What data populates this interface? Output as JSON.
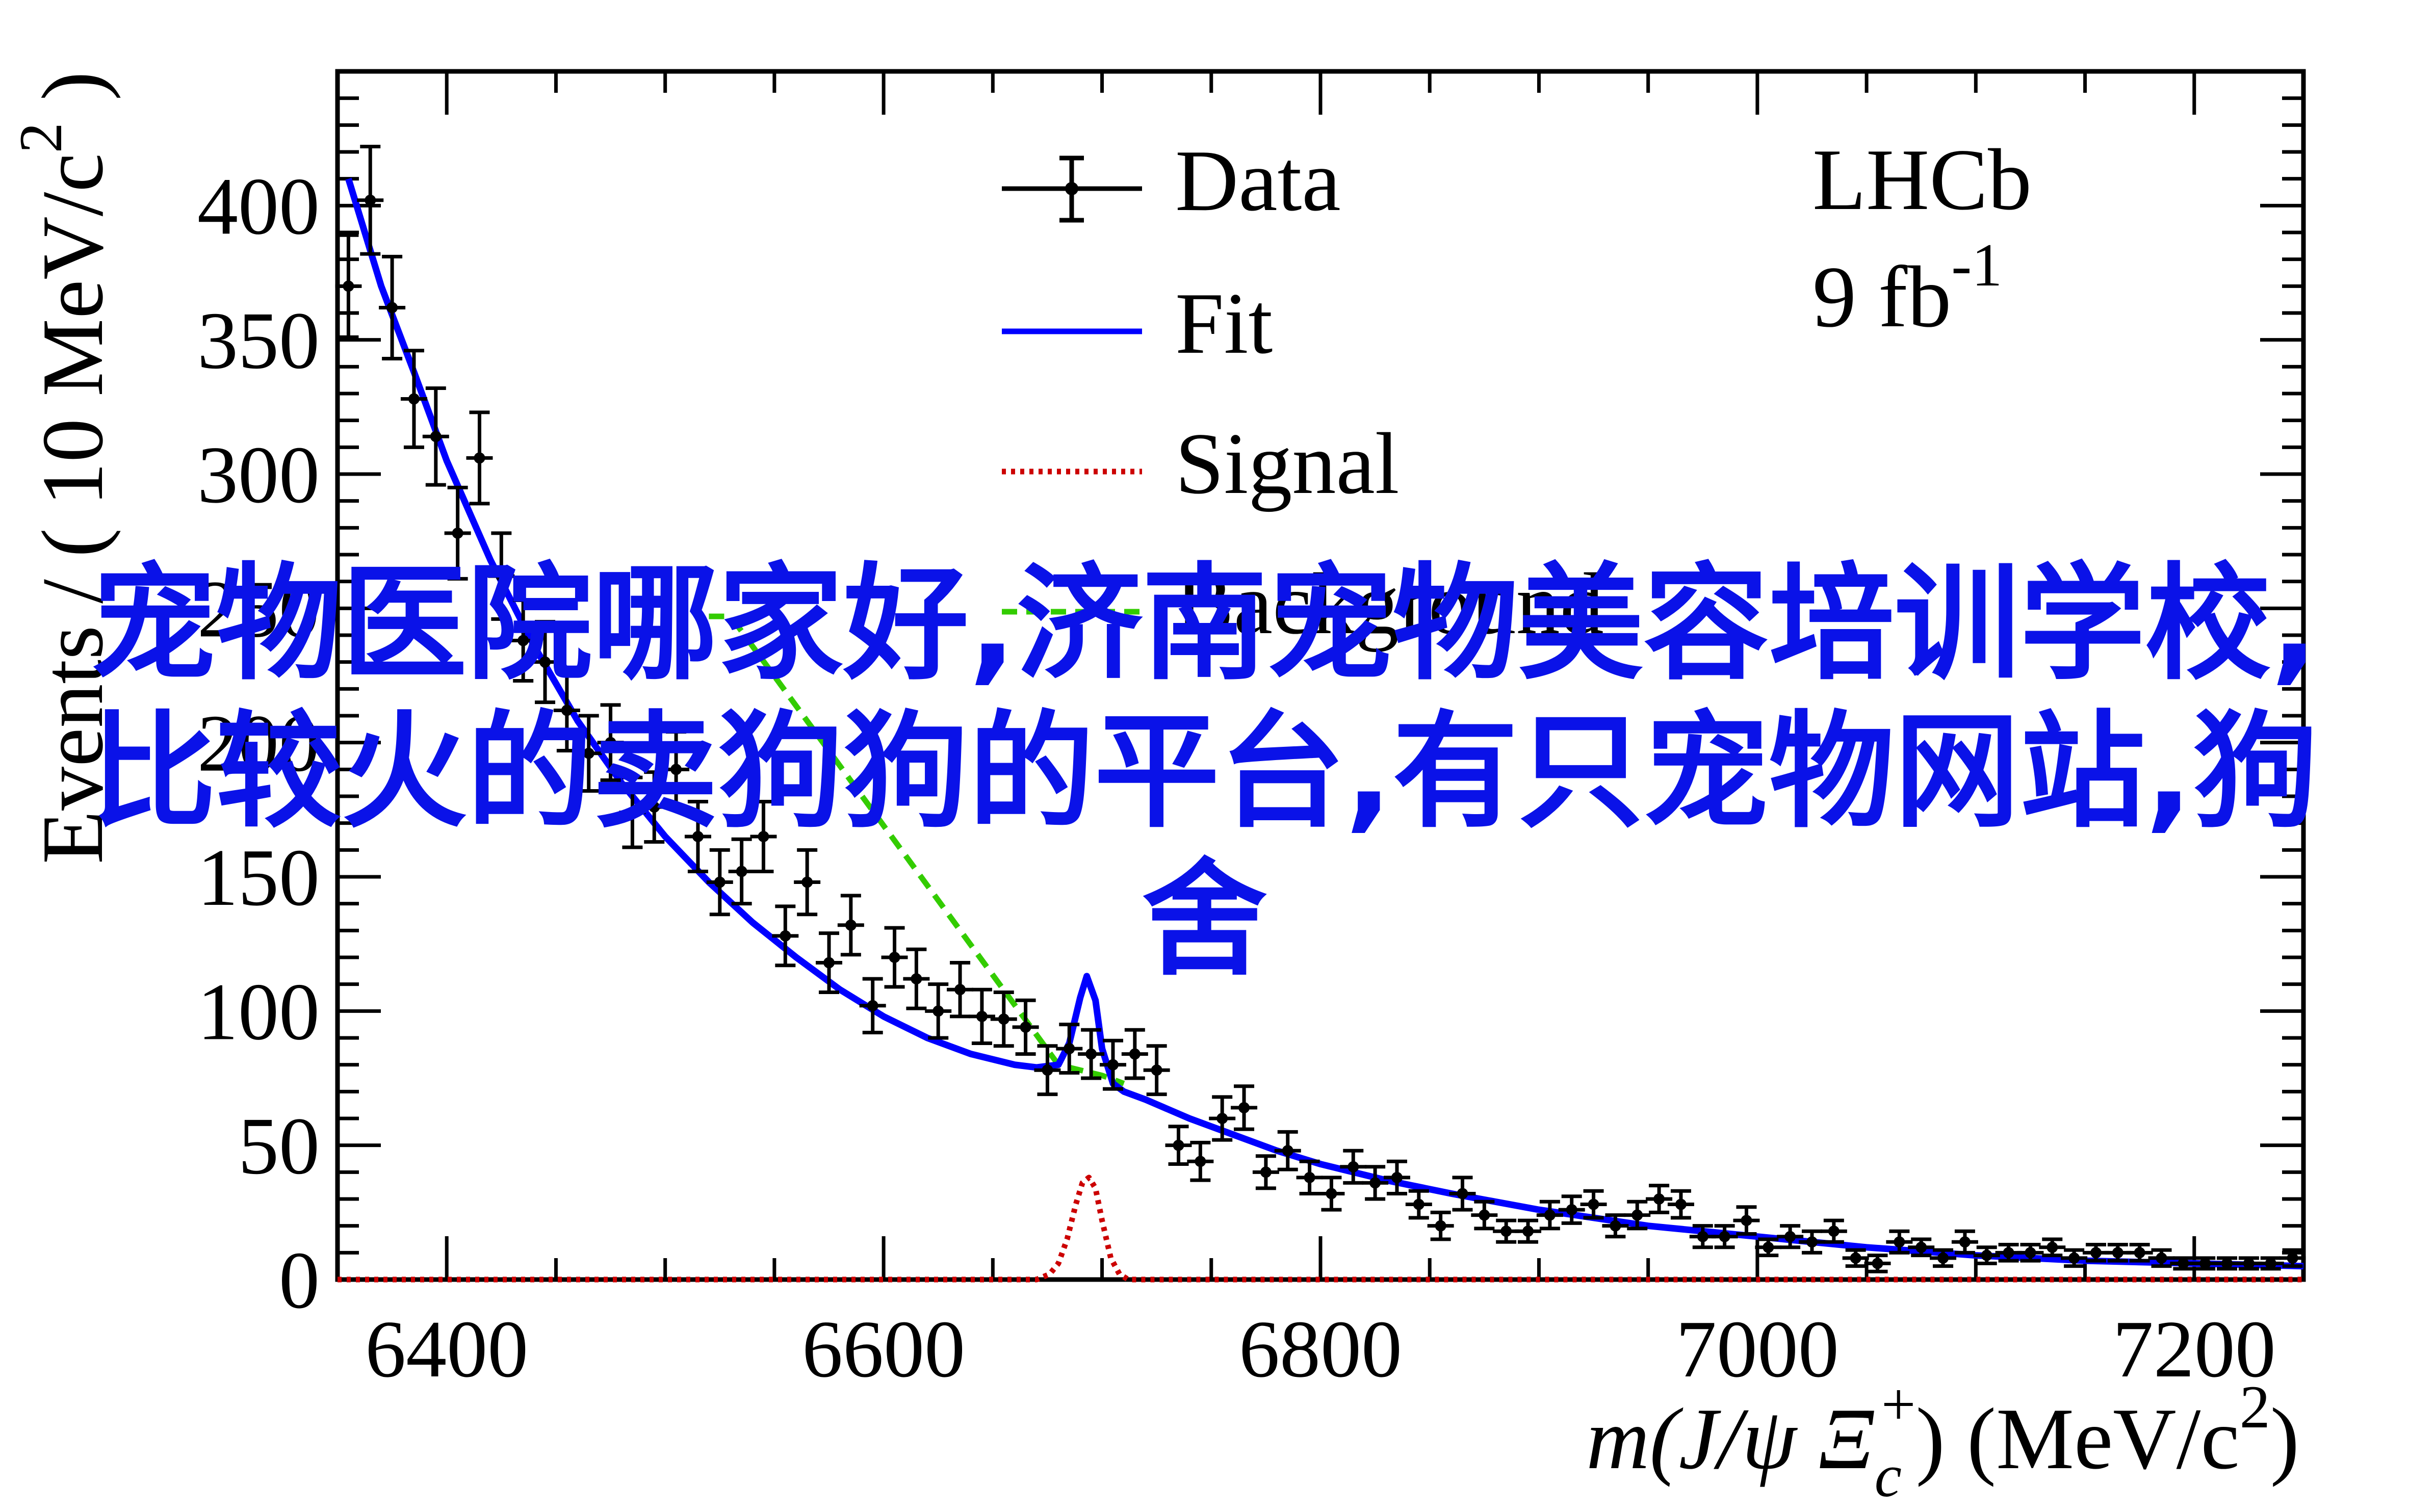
{
  "chart_data": {
    "type": "scatter",
    "title": "",
    "experiment_label": "LHCb",
    "luminosity_label": "9 fb",
    "luminosity_exponent": "-1",
    "xlabel_main": "m(J/ψ Ξ",
    "xlabel_sub": "c",
    "xlabel_sup": "+",
    "xlabel_unit": ") (MeV/c",
    "xlabel_unit_sup": "2",
    "xlabel_end": ")",
    "ylabel": "Events / ( 10 MeV/c",
    "ylabel_sup": "2",
    "ylabel_end": " )",
    "xlim": [
      6350,
      7250
    ],
    "ylim": [
      0,
      450
    ],
    "x_ticks": [
      6400,
      6600,
      6800,
      7000,
      7200
    ],
    "y_ticks": [
      0,
      50,
      100,
      150,
      200,
      250,
      300,
      350,
      400
    ],
    "legend": {
      "placement": "top-center",
      "entries": [
        {
          "label": "Data",
          "style": "marker-errorbar",
          "color": "#000000"
        },
        {
          "label": "Fit",
          "style": "solid",
          "color": "#0000ff"
        },
        {
          "label": "Signal",
          "style": "dotted",
          "color": "#cc0000"
        },
        {
          "label": "Background",
          "style": "dashed",
          "color": "#33cc00"
        }
      ]
    },
    "series": [
      {
        "name": "Data",
        "x": [
          6355,
          6365,
          6375,
          6385,
          6395,
          6405,
          6415,
          6425,
          6435,
          6445,
          6455,
          6465,
          6475,
          6485,
          6495,
          6505,
          6515,
          6525,
          6535,
          6545,
          6555,
          6565,
          6575,
          6585,
          6595,
          6605,
          6615,
          6625,
          6635,
          6645,
          6655,
          6665,
          6675,
          6685,
          6695,
          6705,
          6715,
          6725,
          6735,
          6745,
          6755,
          6765,
          6775,
          6785,
          6795,
          6805,
          6815,
          6825,
          6835,
          6845,
          6855,
          6865,
          6875,
          6885,
          6895,
          6905,
          6915,
          6925,
          6935,
          6945,
          6955,
          6965,
          6975,
          6985,
          6995,
          7005,
          7015,
          7025,
          7035,
          7045,
          7055,
          7065,
          7075,
          7085,
          7095,
          7105,
          7115,
          7125,
          7135,
          7145,
          7155,
          7165,
          7175,
          7185,
          7195,
          7205,
          7215,
          7225,
          7235,
          7245
        ],
        "y": [
          370,
          402,
          362,
          328,
          314,
          278,
          306,
          262,
          238,
          230,
          212,
          196,
          200,
          174,
          176,
          190,
          165,
          148,
          152,
          165,
          128,
          148,
          118,
          132,
          102,
          120,
          112,
          100,
          108,
          98,
          97,
          94,
          78,
          86,
          84,
          80,
          84,
          78,
          50,
          44,
          60,
          64,
          40,
          48,
          38,
          32,
          42,
          36,
          38,
          28,
          20,
          32,
          24,
          18,
          18,
          24,
          26,
          28,
          20,
          24,
          30,
          28,
          16,
          16,
          22,
          12,
          16,
          14,
          18,
          8,
          6,
          14,
          12,
          8,
          14,
          9,
          10,
          10,
          12,
          8,
          10,
          10,
          10,
          8,
          6,
          6,
          6,
          6,
          6,
          8
        ],
        "yerr": [
          19,
          20,
          19,
          18,
          18,
          17,
          17,
          16,
          15,
          15,
          15,
          14,
          14,
          13,
          13,
          14,
          13,
          12,
          12,
          13,
          11,
          12,
          11,
          11,
          10,
          11,
          11,
          10,
          10,
          10,
          10,
          10,
          9,
          9,
          9,
          9,
          9,
          9,
          7,
          7,
          8,
          8,
          6,
          7,
          6,
          6,
          6,
          6,
          6,
          5,
          5,
          6,
          5,
          4,
          4,
          5,
          5,
          5,
          4,
          5,
          5,
          5,
          4,
          4,
          5,
          3,
          4,
          4,
          4,
          3,
          3,
          4,
          3,
          3,
          4,
          3,
          3,
          3,
          3,
          3,
          3,
          3,
          3,
          3,
          2,
          2,
          2,
          2,
          2,
          3
        ],
        "color": "#000000"
      },
      {
        "name": "Fit",
        "x": [
          6355,
          6370,
          6385,
          6400,
          6420,
          6440,
          6460,
          6480,
          6500,
          6520,
          6540,
          6560,
          6580,
          6600,
          6620,
          6640,
          6660,
          6670,
          6680,
          6685,
          6690,
          6693,
          6697,
          6700,
          6705,
          6710,
          6720,
          6740,
          6760,
          6780,
          6800,
          6830,
          6860,
          6900,
          6950,
          7000,
          7050,
          7100,
          7150,
          7200,
          7250
        ],
        "y": [
          410,
          370,
          338,
          305,
          268,
          236,
          208,
          185,
          165,
          148,
          133,
          120,
          108,
          98,
          90,
          84,
          80,
          79,
          80,
          88,
          105,
          113,
          104,
          86,
          73,
          70,
          67,
          60,
          54,
          48,
          43,
          37,
          32,
          26,
          20,
          16,
          12,
          9,
          7,
          6,
          5
        ],
        "color": "#0000ff"
      },
      {
        "name": "Signal",
        "x": [
          6350,
          6670,
          6676,
          6680,
          6684,
          6688,
          6691,
          6694,
          6697,
          6700,
          6704,
          6708,
          6712,
          7250
        ],
        "y": [
          0,
          0,
          2,
          6,
          15,
          28,
          36,
          38,
          34,
          22,
          8,
          2,
          0,
          0
        ],
        "color": "#cc0000"
      },
      {
        "name": "Background",
        "x": [
          6520,
          6530,
          6680,
          6690,
          6700,
          6710
        ],
        "y": [
          247,
          247,
          80,
          78,
          76,
          73
        ],
        "color": "#33cc00"
      }
    ]
  },
  "overlay": {
    "title": "宠物医院哪家好,济南宠物美容培训学校,比较火的卖狗狗的平台,有只宠物网站,狗舍",
    "color": "#0a12e8"
  }
}
